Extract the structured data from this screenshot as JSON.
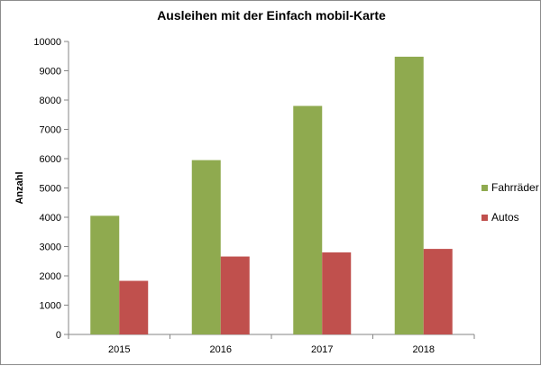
{
  "chart_data": {
    "type": "bar",
    "title": "Ausleihen mit der Einfach mobil-Karte",
    "ylabel": "Anzahl",
    "xlabel": "",
    "categories": [
      "2015",
      "2016",
      "2017",
      "2018"
    ],
    "series": [
      {
        "name": "Fahrräder",
        "color": "#8faa4f",
        "values": [
          4050,
          5950,
          7800,
          9480
        ]
      },
      {
        "name": "Autos",
        "color": "#c0504d",
        "values": [
          1830,
          2660,
          2800,
          2920
        ]
      }
    ],
    "ylim": [
      0,
      10000
    ],
    "yticks": [
      "0",
      "1000",
      "2000",
      "3000",
      "4000",
      "5000",
      "6000",
      "7000",
      "8000",
      "9000",
      "10000"
    ],
    "grid": false,
    "legend_position": "right"
  }
}
